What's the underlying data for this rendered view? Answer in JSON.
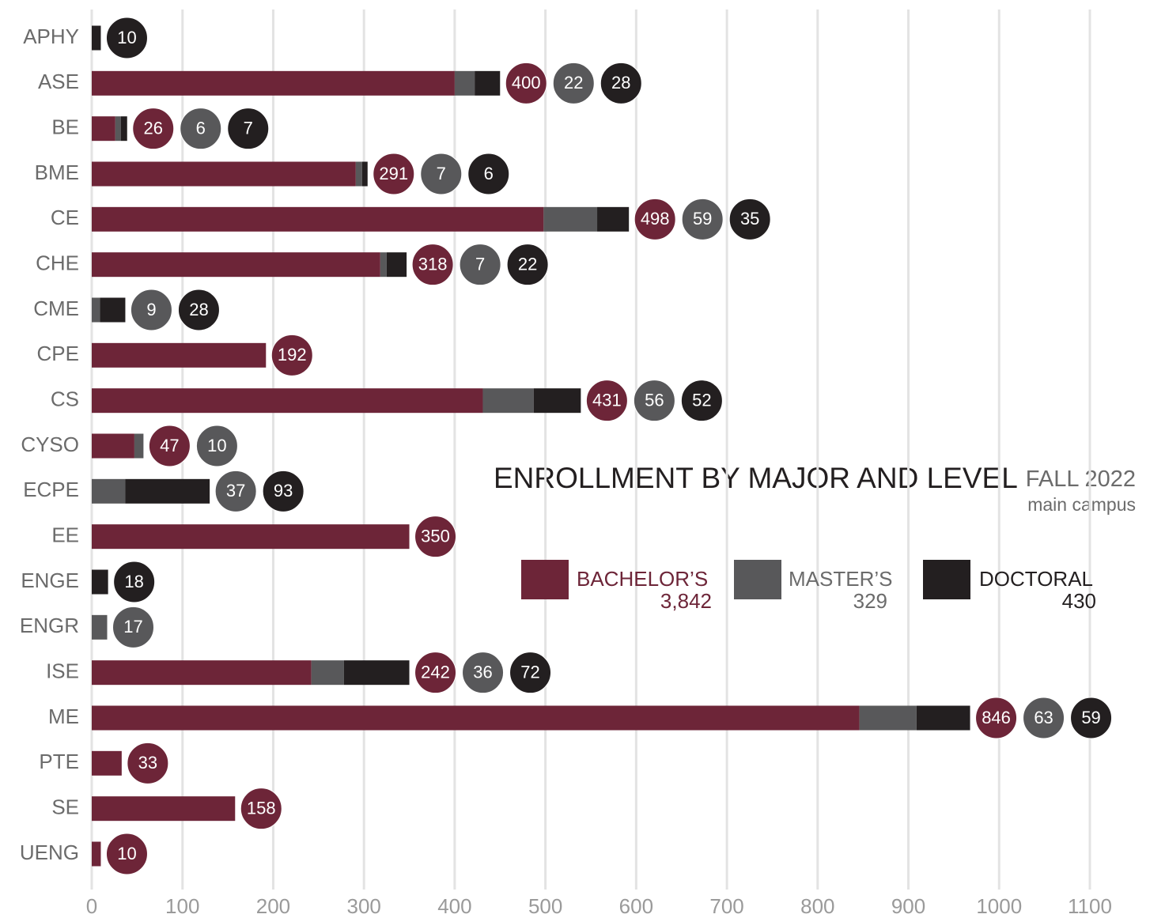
{
  "chart_data": {
    "type": "stacked-bar-horizontal",
    "title": "ENROLLMENT BY MAJOR AND LEVEL",
    "subtitle": "FALL 2022",
    "note": "main campus",
    "categories": [
      "APHY",
      "ASE",
      "BE",
      "BME",
      "CE",
      "CHE",
      "CME",
      "CPE",
      "CS",
      "CYSO",
      "ECPE",
      "EE",
      "ENGE",
      "ENGR",
      "ISE",
      "ME",
      "PTE",
      "SE",
      "UENG"
    ],
    "series": [
      {
        "name": "BACHELOR’S",
        "color": "#6d2538",
        "total": 3842,
        "total_label": "3,842",
        "values": [
          null,
          400,
          26,
          291,
          498,
          318,
          null,
          192,
          431,
          47,
          null,
          350,
          null,
          null,
          242,
          846,
          33,
          158,
          10
        ]
      },
      {
        "name": "MASTER’S",
        "color": "#58585a",
        "total": 329,
        "total_label": "329",
        "values": [
          null,
          22,
          6,
          7,
          59,
          7,
          9,
          null,
          56,
          10,
          37,
          null,
          null,
          17,
          36,
          63,
          null,
          null,
          null
        ]
      },
      {
        "name": "DOCTORAL",
        "color": "#231f20",
        "total": 430,
        "total_label": "430",
        "values": [
          10,
          28,
          7,
          6,
          35,
          22,
          28,
          null,
          52,
          null,
          93,
          null,
          18,
          null,
          72,
          59,
          null,
          null,
          null
        ]
      }
    ],
    "xlim": [
      0,
      1100
    ],
    "xticks": [
      0,
      100,
      200,
      300,
      400,
      500,
      600,
      700,
      800,
      900,
      1000,
      1100
    ],
    "grid": true
  }
}
